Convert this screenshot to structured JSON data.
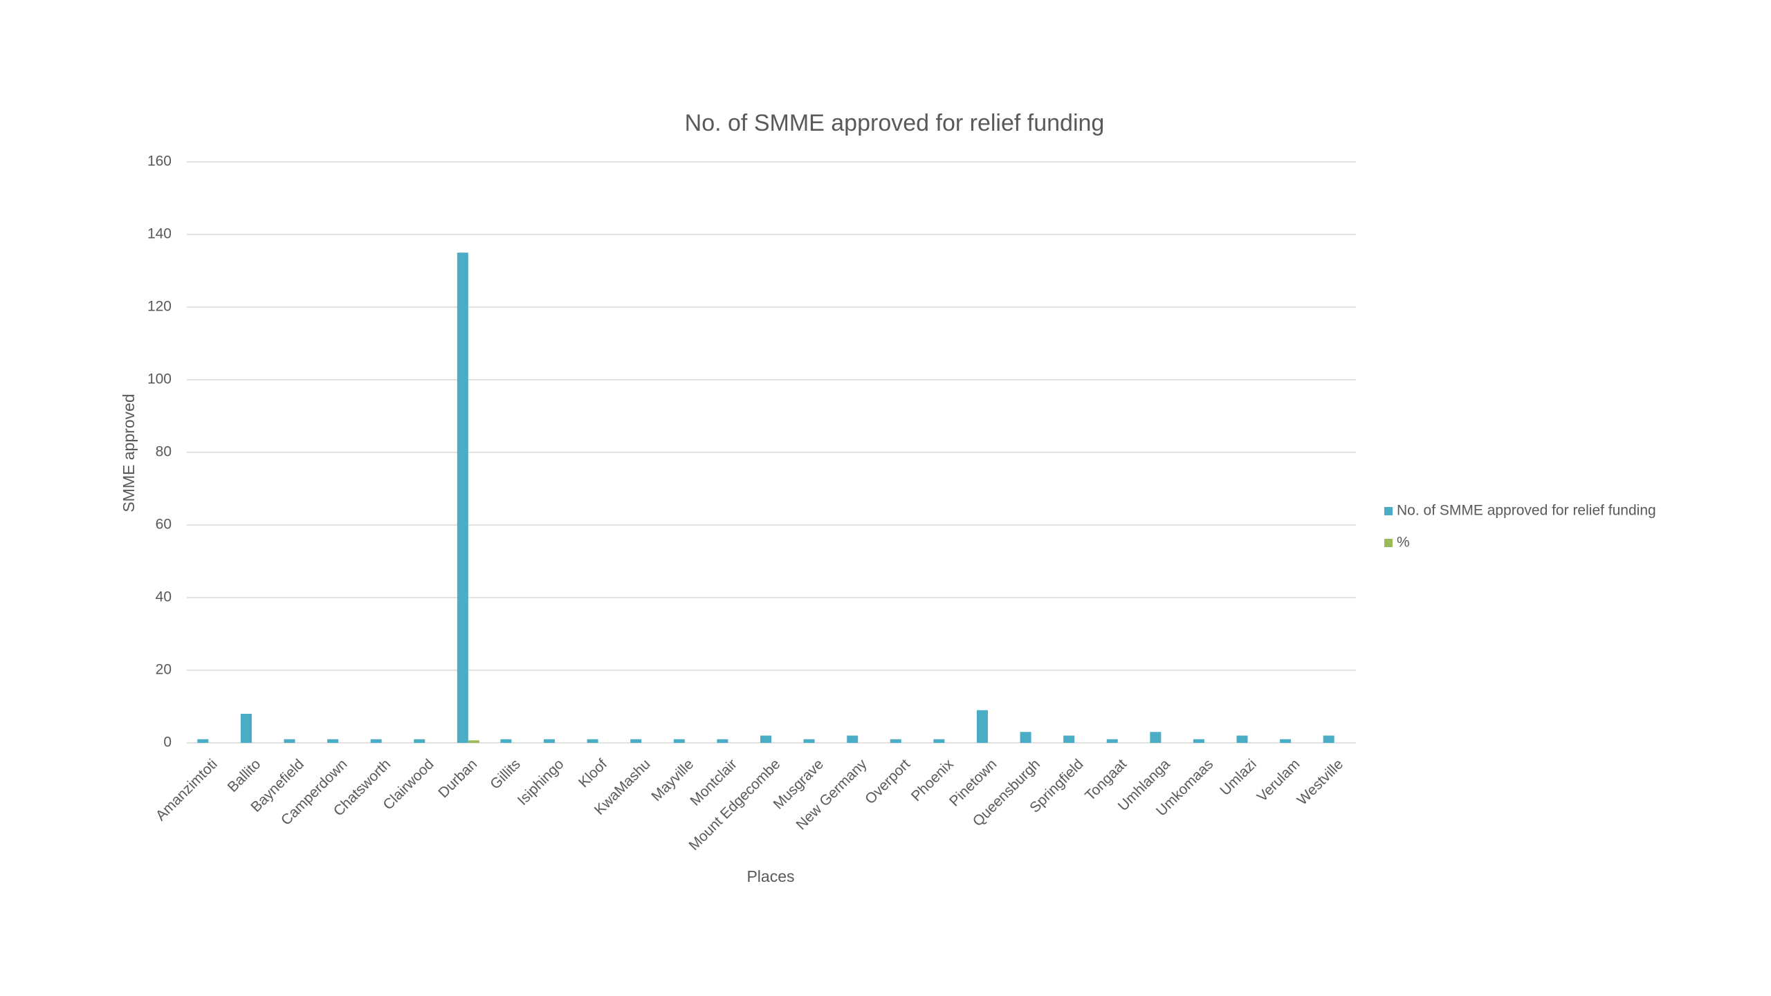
{
  "chart_data": {
    "type": "bar",
    "title": "No. of SMME approved for relief funding",
    "x_label": "Places",
    "y_label": "SMME approved",
    "categories": [
      "Amanzimtoti",
      "Ballito",
      "Baynefield",
      "Camperdown",
      "Chatsworth",
      "Clairwood",
      "Durban",
      "Gillits",
      "Isiphingo",
      "Kloof",
      "KwaMashu",
      "Mayville",
      "Montclair",
      "Mount Edgecombe",
      "Musgrave",
      "New Germany",
      "Overport",
      "Phoenix",
      "Pinetown",
      "Queensburgh",
      "Springfield",
      "Tongaat",
      "Umhlanga",
      "Umkomaas",
      "Umlazi",
      "Verulam",
      "Westville"
    ],
    "series": [
      {
        "name": "No. of SMME approved for relief funding",
        "color": "#4bacc6",
        "values": [
          1,
          8,
          1,
          1,
          1,
          1,
          135,
          1,
          1,
          1,
          1,
          1,
          1,
          2,
          1,
          2,
          1,
          1,
          9,
          3,
          2,
          1,
          3,
          1,
          2,
          1,
          2
        ]
      },
      {
        "name": "%",
        "color": "#9bbb59",
        "values": [
          0,
          0,
          0,
          0,
          0,
          0,
          0.7,
          0,
          0,
          0,
          0,
          0,
          0,
          0,
          0,
          0,
          0,
          0,
          0,
          0,
          0,
          0,
          0,
          0,
          0,
          0,
          0
        ]
      }
    ],
    "ylim": [
      0,
      160
    ],
    "yticks": [
      0,
      20,
      40,
      60,
      80,
      100,
      120,
      140,
      160
    ],
    "grid": true,
    "legend": "right"
  }
}
